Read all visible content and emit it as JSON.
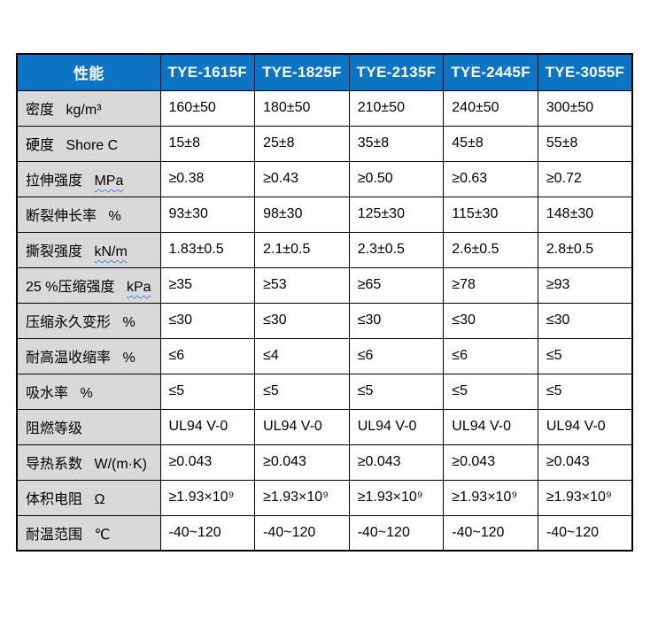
{
  "table": {
    "header": {
      "property_label": "性能",
      "models": [
        "TYE-1615F",
        "TYE-1825F",
        "TYE-2135F",
        "TYE-2445F",
        "TYE-3055F"
      ]
    },
    "rows": [
      {
        "label": "密度",
        "unit": "kg/m³",
        "unit_underline": false,
        "values": [
          "160±50",
          "180±50",
          "210±50",
          "240±50",
          "300±50"
        ]
      },
      {
        "label": "硬度",
        "unit": "Shore C",
        "unit_underline": false,
        "values": [
          "15±8",
          "25±8",
          "35±8",
          "45±8",
          "55±8"
        ]
      },
      {
        "label": "拉伸强度",
        "unit": "MPa",
        "unit_underline": true,
        "values": [
          "≥0.38",
          "≥0.43",
          "≥0.50",
          "≥0.63",
          "≥0.72"
        ]
      },
      {
        "label": "断裂伸长率",
        "unit": "%",
        "unit_underline": false,
        "values": [
          "93±30",
          "98±30",
          "125±30",
          "115±30",
          "148±30"
        ]
      },
      {
        "label": "撕裂强度",
        "unit": "kN/m",
        "unit_underline": true,
        "values": [
          "1.83±0.5",
          "2.1±0.5",
          "2.3±0.5",
          "2.6±0.5",
          "2.8±0.5"
        ]
      },
      {
        "label": "25 %压缩强度",
        "unit": "kPa",
        "unit_underline": true,
        "values": [
          "≥35",
          "≥53",
          "≥65",
          "≥78",
          "≥93"
        ]
      },
      {
        "label": "压缩永久变形",
        "unit": "%",
        "unit_underline": false,
        "values": [
          "≤30",
          "≤30",
          "≤30",
          "≤30",
          "≤30"
        ]
      },
      {
        "label": "耐高温收缩率",
        "unit": "%",
        "unit_underline": false,
        "values": [
          "≤6",
          "≤4",
          "≤6",
          "≤6",
          "≤5"
        ]
      },
      {
        "label": "吸水率",
        "unit": "%",
        "unit_underline": false,
        "values": [
          "≤5",
          "≤5",
          "≤5",
          "≤5",
          "≤5"
        ]
      },
      {
        "label": "阻燃等级",
        "unit": "",
        "unit_underline": false,
        "values": [
          "UL94 V-0",
          "UL94 V-0",
          "UL94 V-0",
          "UL94 V-0",
          "UL94 V-0"
        ]
      },
      {
        "label": "导热系数",
        "unit": "W/(m·K)",
        "unit_underline": false,
        "values": [
          "≥0.043",
          "≥0.043",
          "≥0.043",
          "≥0.043",
          "≥0.043"
        ]
      },
      {
        "label": "体积电阻",
        "unit": "Ω",
        "unit_underline": false,
        "values": [
          "≥1.93×10⁹",
          "≥1.93×10⁹",
          "≥1.93×10⁹",
          "≥1.93×10⁹",
          "≥1.93×10⁹"
        ]
      },
      {
        "label": "耐温范围",
        "unit": "℃",
        "unit_underline": false,
        "values": [
          "-40~120",
          "-40~120",
          "-40~120",
          "-40~120",
          "-40~120"
        ]
      }
    ]
  },
  "colors": {
    "header_bg": "#0d74c4",
    "header_text": "#ffffff",
    "label_bg": "#d9d9d9",
    "border": "#000000",
    "squiggle_underline": "#4a86e8"
  }
}
